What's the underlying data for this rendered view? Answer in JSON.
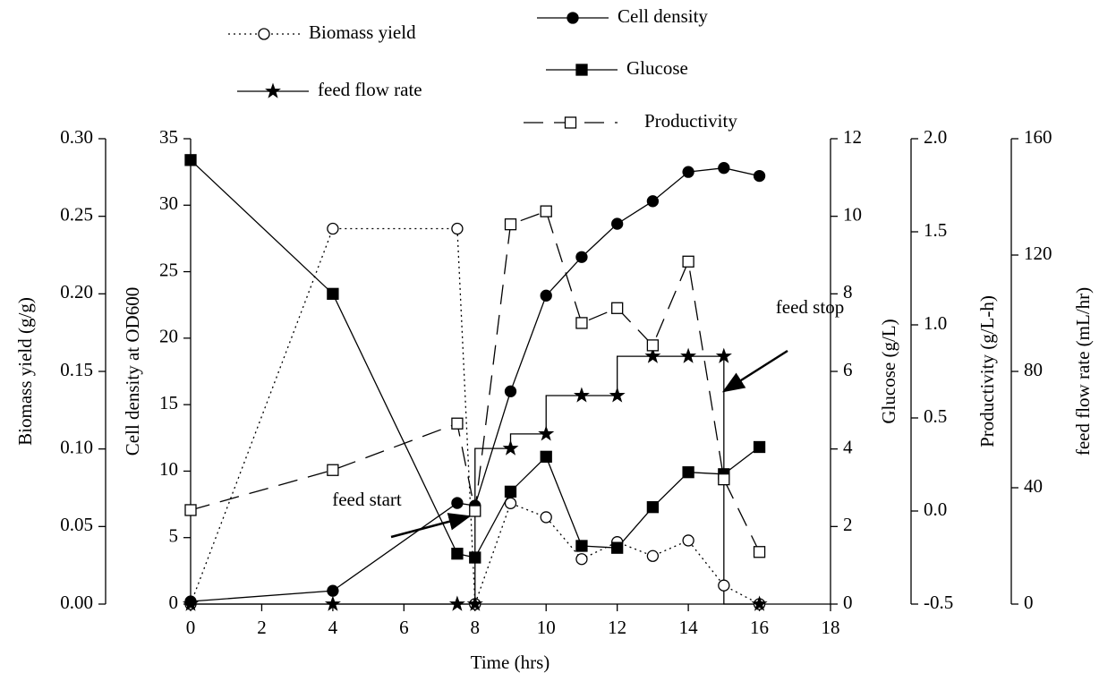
{
  "chart_data": {
    "type": "line",
    "x_label": "Time (hrs)",
    "x": [
      0,
      4,
      7.5,
      8,
      9,
      10,
      11,
      12,
      13,
      14,
      15,
      16
    ],
    "xlim": [
      0,
      18
    ],
    "xticks": [
      0,
      2,
      4,
      6,
      8,
      10,
      12,
      14,
      16,
      18
    ],
    "y_axes": [
      {
        "label": "Biomass yield (g/g)",
        "ylim": [
          0,
          0.3
        ],
        "side": "left",
        "yticks": [
          {
            "value": 0,
            "label": "0.00"
          },
          {
            "value": 0.05,
            "label": "0.05"
          },
          {
            "value": 0.1,
            "label": "0.10"
          },
          {
            "value": 0.15,
            "label": "0.15"
          },
          {
            "value": 0.2,
            "label": "0.20"
          },
          {
            "value": 0.25,
            "label": "0.25"
          },
          {
            "value": 0.3,
            "label": "0.30"
          }
        ]
      },
      {
        "label": "Cell density at OD600",
        "ylim": [
          0,
          35
        ],
        "side": "left",
        "yticks": [
          0,
          5,
          10,
          15,
          20,
          25,
          30,
          35
        ]
      },
      {
        "label": "Glucose (g/L)",
        "ylim": [
          0,
          12
        ],
        "side": "right",
        "yticks": [
          0,
          2,
          4,
          6,
          8,
          10,
          12
        ]
      },
      {
        "label": "Productivity (g/L-h)",
        "ylim": [
          -0.5,
          2.0
        ],
        "side": "right",
        "yticks": [
          {
            "value": -0.5,
            "label": "-0.5"
          },
          {
            "value": 0,
            "label": "0.0"
          },
          {
            "value": 0.5,
            "label": "0.5"
          },
          {
            "value": 1,
            "label": "1.0"
          },
          {
            "value": 1.5,
            "label": "1.5"
          },
          {
            "value": 2,
            "label": "2.0"
          }
        ]
      },
      {
        "label": "feed flow rate (mL/hr)",
        "ylim": [
          0,
          160
        ],
        "side": "right",
        "yticks": [
          0,
          40,
          80,
          120,
          160
        ]
      }
    ],
    "series": [
      {
        "name": "Biomass yield",
        "color": "#000000",
        "axis": 0,
        "marker": "circle-open",
        "linestyle": "dotted",
        "values": [
          0,
          0.242,
          0.242,
          0,
          0.065,
          0.056,
          0.029,
          0.04,
          0.031,
          0.041,
          0.012,
          0
        ]
      },
      {
        "name": "Cell density",
        "color": "#000000",
        "axis": 1,
        "marker": "circle",
        "linestyle": "solid",
        "values": [
          0.2,
          1.0,
          7.6,
          7.4,
          16.0,
          23.2,
          26.1,
          28.6,
          30.3,
          32.5,
          32.8,
          32.2
        ]
      },
      {
        "name": "Glucose",
        "color": "#000000",
        "axis": 2,
        "marker": "square",
        "linestyle": "solid",
        "values": [
          11.45,
          8.0,
          1.3,
          1.2,
          2.9,
          3.8,
          1.5,
          1.45,
          2.5,
          3.4,
          3.35,
          4.05
        ]
      },
      {
        "name": "feed flow rate",
        "color": "#000000",
        "axis": 4,
        "marker": "star",
        "linestyle": "solid",
        "step": true,
        "values": [
          0,
          0,
          0,
          0,
          53.5,
          58.5,
          71.7,
          71.7,
          85.2,
          85.2,
          85.2,
          0
        ]
      },
      {
        "name": "Productivity",
        "color": "#000000",
        "axis": 3,
        "marker": "square-open",
        "linestyle": "dashed",
        "values": [
          0.005,
          0.22,
          0.47,
          0.0,
          1.54,
          1.61,
          1.01,
          1.09,
          0.89,
          1.34,
          0.17,
          -0.22
        ]
      }
    ],
    "annotations": [
      {
        "text": "feed start"
      },
      {
        "text": "feed stop"
      }
    ]
  }
}
